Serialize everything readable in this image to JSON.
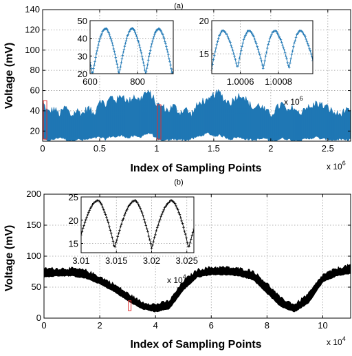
{
  "figure": {
    "panel_a_label": "(a)",
    "panel_b_label": "(b)"
  },
  "chart_data": [
    {
      "id": "panel-a",
      "type": "line",
      "panel_label": "(a)",
      "xlabel": "Index of Sampling Points",
      "ylabel": "Voltage (mV)",
      "x_multiplier": "x 10^6",
      "xlim": [
        0,
        2.7
      ],
      "ylim": [
        10,
        140
      ],
      "xticks": [
        0,
        0.5,
        1,
        1.5,
        2,
        2.5
      ],
      "yticks": [
        20,
        40,
        60,
        80,
        100,
        120,
        140
      ],
      "xtick_labels": [
        "0",
        "0.5",
        "1",
        "1.5",
        "2",
        "2.5"
      ],
      "ytick_labels": [
        "20",
        "40",
        "60",
        "80",
        "100",
        "120",
        "140"
      ],
      "grid": true,
      "color": "#1f77b4",
      "envelope": {
        "x": [
          0,
          0.05,
          0.1,
          0.15,
          0.2,
          0.25,
          0.3,
          0.35,
          0.4,
          0.45,
          0.5,
          0.55,
          0.6,
          0.65,
          0.7,
          0.75,
          0.8,
          0.85,
          0.9,
          0.95,
          1.0,
          1.05,
          1.1,
          1.15,
          1.2,
          1.25,
          1.3,
          1.35,
          1.4,
          1.45,
          1.5,
          1.55,
          1.6,
          1.65,
          1.7,
          1.75,
          1.8,
          1.85,
          1.9,
          1.95,
          2.0,
          2.05,
          2.1,
          2.15,
          2.2,
          2.25,
          2.3,
          2.35,
          2.4,
          2.45,
          2.5,
          2.55,
          2.6,
          2.65,
          2.7
        ],
        "upper": [
          48,
          38,
          42,
          36,
          44,
          35,
          40,
          37,
          43,
          36,
          52,
          45,
          54,
          50,
          56,
          48,
          55,
          50,
          58,
          56,
          46,
          44,
          40,
          45,
          38,
          42,
          36,
          44,
          50,
          48,
          56,
          58,
          50,
          48,
          54,
          56,
          48,
          42,
          46,
          40,
          36,
          42,
          47,
          38,
          44,
          36,
          44,
          42,
          48,
          45,
          43,
          38,
          36,
          40,
          38
        ],
        "lower": [
          12,
          10,
          12,
          14,
          12,
          10,
          12,
          11,
          12,
          13,
          14,
          12,
          15,
          14,
          16,
          13,
          15,
          14,
          17,
          18,
          12,
          10,
          11,
          12,
          12,
          11,
          12,
          14,
          16,
          18,
          15,
          16,
          14,
          12,
          14,
          13,
          12,
          11,
          12,
          13,
          10,
          11,
          13,
          12,
          11,
          10,
          12,
          13,
          14,
          12,
          12,
          11,
          12,
          11,
          12
        ]
      },
      "highlights": [
        {
          "x_range": [
            0.0006,
            0.0009
          ],
          "y_range": [
            12,
            50
          ]
        },
        {
          "x_range": [
            1.0006,
            1.0009
          ],
          "y_range": [
            12,
            46
          ]
        }
      ],
      "insets": [
        {
          "id": "inset-a1",
          "xlim": [
            600,
            950
          ],
          "ylim": [
            20,
            50
          ],
          "xticks": [
            600,
            800
          ],
          "yticks": [
            20,
            30,
            40,
            50
          ],
          "xtick_labels": [
            "600",
            "800"
          ],
          "ytick_labels": [
            "20",
            "30",
            "40",
            "50"
          ],
          "cycle": {
            "start": 610,
            "period": 112,
            "peak": 45.5,
            "trough": 19.5,
            "peak_phase": 0.5
          },
          "marker": "+",
          "color": "#1f77b4"
        },
        {
          "id": "inset-a2",
          "xlim": [
            1.00045,
            1.00098
          ],
          "ylim": [
            12,
            20
          ],
          "xticks": [
            1.0006,
            1.0008
          ],
          "yticks": [
            15,
            20
          ],
          "xtick_labels": [
            "1.0006",
            "1.0008"
          ],
          "ytick_labels": [
            "15",
            "20"
          ],
          "x_multiplier": "x 10^6",
          "cycle": {
            "start": 1.00045,
            "period": 0.000135,
            "peak": 18.5,
            "trough": 12.8,
            "peak_phase": 0.45
          },
          "marker": "+",
          "color": "#1f77b4"
        }
      ]
    },
    {
      "id": "panel-b",
      "type": "line",
      "panel_label": "(b)",
      "xlabel": "Index of Sampling Points",
      "ylabel": "Voltage (mV)",
      "x_multiplier": "x 10^4",
      "xlim": [
        0,
        11
      ],
      "ylim": [
        0,
        200
      ],
      "xticks": [
        0,
        2,
        4,
        6,
        8,
        10
      ],
      "yticks": [
        0,
        50,
        100,
        150,
        200
      ],
      "xtick_labels": [
        "0",
        "2",
        "4",
        "6",
        "8",
        "10"
      ],
      "ytick_labels": [
        "0",
        "50",
        "100",
        "150",
        "200"
      ],
      "grid": true,
      "color": "#000000",
      "envelope": {
        "x": [
          0,
          0.5,
          1,
          1.5,
          2,
          2.5,
          3,
          3.5,
          4,
          4.5,
          5,
          5.5,
          6,
          6.5,
          7,
          7.5,
          8,
          8.5,
          9,
          9.5,
          10,
          10.5,
          11
        ],
        "upper": [
          80,
          80,
          80,
          77,
          67,
          55,
          40,
          26,
          22,
          28,
          60,
          78,
          82,
          82,
          80,
          76,
          56,
          32,
          22,
          40,
          70,
          80,
          86
        ],
        "lower": [
          66,
          68,
          68,
          64,
          55,
          43,
          28,
          15,
          10,
          15,
          45,
          66,
          70,
          70,
          68,
          62,
          40,
          18,
          10,
          25,
          58,
          68,
          72
        ]
      },
      "highlights": [
        {
          "x_range": [
            3.0,
            3.06
          ],
          "y_range": [
            12,
            28
          ]
        }
      ],
      "insets": [
        {
          "id": "inset-b1",
          "xlim": [
            3.01,
            3.026
          ],
          "ylim": [
            13,
            25
          ],
          "xticks": [
            3.01,
            3.015,
            3.02,
            3.025
          ],
          "yticks": [
            15,
            20,
            25
          ],
          "xtick_labels": [
            "3.01",
            "3.015",
            "3.02",
            "3.025"
          ],
          "ytick_labels": [
            "15",
            "20",
            "25"
          ],
          "x_multiplier": "x 10^4",
          "cycle": {
            "start": 3.0095,
            "period": 0.00525,
            "peak": 24.2,
            "trough": 14.0,
            "peak_phase": 0.55
          },
          "marker": "+",
          "color": "#000000"
        }
      ]
    }
  ]
}
